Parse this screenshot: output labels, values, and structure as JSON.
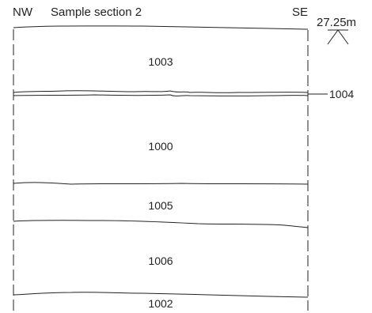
{
  "header": {
    "left_direction": "NW",
    "title": "Sample section 2",
    "right_direction": "SE"
  },
  "datum": {
    "elevation_label": "27.25m"
  },
  "contexts": [
    {
      "id": "1003"
    },
    {
      "id": "1004"
    },
    {
      "id": "1000"
    },
    {
      "id": "1005"
    },
    {
      "id": "1006"
    },
    {
      "id": "1002"
    }
  ],
  "colors": {
    "ink": "#222222",
    "background": "#ffffff"
  }
}
